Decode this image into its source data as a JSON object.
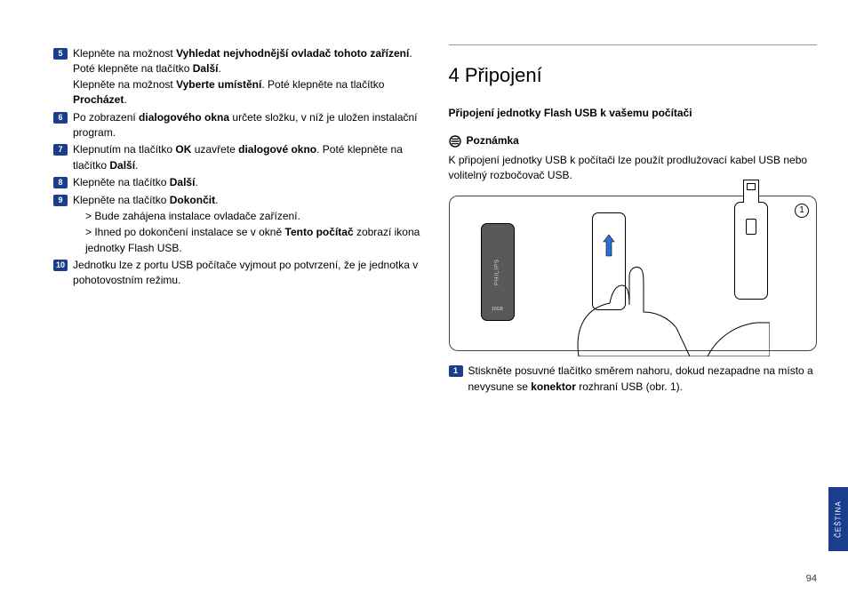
{
  "left": {
    "steps": [
      {
        "n": "5",
        "parts": [
          {
            "t": "Klepněte na možnost "
          },
          {
            "t": "Vyhledat nejvhodnější ovladač tohoto zařízení",
            "b": true
          },
          {
            "t": ". Poté klepněte na tlačítko "
          },
          {
            "t": "Další",
            "b": true
          },
          {
            "t": "."
          }
        ],
        "extra": [
          {
            "t": "Klepněte na možnost "
          },
          {
            "t": "Vyberte umístění",
            "b": true
          },
          {
            "t": ". Poté klepněte na tlačítko "
          },
          {
            "t": "Procházet",
            "b": true
          },
          {
            "t": "."
          }
        ]
      },
      {
        "n": "6",
        "parts": [
          {
            "t": "Po zobrazení "
          },
          {
            "t": "dialogového okna",
            "b": true
          },
          {
            "t": " určete složku, v níž je uložen instalační program."
          }
        ]
      },
      {
        "n": "7",
        "parts": [
          {
            "t": "Klepnutím na tlačítko "
          },
          {
            "t": "OK",
            "b": true
          },
          {
            "t": " uzavřete "
          },
          {
            "t": "dialogové okno",
            "b": true
          },
          {
            "t": ". Poté klepněte na tlačítko "
          },
          {
            "t": "Další",
            "b": true
          },
          {
            "t": "."
          }
        ]
      },
      {
        "n": "8",
        "parts": [
          {
            "t": "Klepněte na tlačítko "
          },
          {
            "t": "Další",
            "b": true
          },
          {
            "t": "."
          }
        ]
      },
      {
        "n": "9",
        "parts": [
          {
            "t": "Klepněte na tlačítko "
          },
          {
            "t": "Dokončit",
            "b": true
          },
          {
            "t": "."
          }
        ],
        "subs": [
          [
            {
              "t": "Bude zahájena instalace ovladače zařízení."
            }
          ],
          [
            {
              "t": "Ihned po dokončení instalace se v okně "
            },
            {
              "t": "Tento počítač",
              "b": true
            },
            {
              "t": " zobrazí ikona jednotky Flash USB."
            }
          ]
        ]
      },
      {
        "n": "10",
        "parts": [
          {
            "t": "Jednotku lze z portu USB počítače vyjmout po potvrzení, že je jednotka v pohotovostním režimu."
          }
        ]
      }
    ]
  },
  "right": {
    "sectionNumber": "4",
    "sectionTitle": "Připojení",
    "subheading": "Připojení jednotky Flash USB k vašemu počítači",
    "noteLabel": "Poznámka",
    "noteText": "K připojení jednotky USB k počítači lze použít prodlužovací kabel USB nebo volitelný rozbočovač USB.",
    "figureNum": "1",
    "usbBrand": "PHILIPS",
    "usbCapacity": "16GB",
    "step1": {
      "n": "1",
      "parts": [
        {
          "t": "Stiskněte posuvné tlačítko směrem nahoru, dokud nezapadne na místo a nevysune se "
        },
        {
          "t": "konektor",
          "b": true
        },
        {
          "t": " rozhraní USB (obr. 1)."
        }
      ]
    }
  },
  "sideTab": "ČEŠTINA",
  "pageNum": "94",
  "colors": {
    "badge": "#1a3e8c"
  }
}
